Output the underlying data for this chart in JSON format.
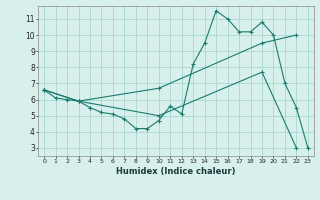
{
  "xlabel": "Humidex (Indice chaleur)",
  "bg_color": "#d7f0ec",
  "grid_color": "#a8d8d0",
  "line_color": "#1a7a6e",
  "xlim": [
    -0.5,
    23.5
  ],
  "ylim": [
    2.5,
    11.8
  ],
  "xticks": [
    0,
    1,
    2,
    3,
    4,
    5,
    6,
    7,
    8,
    9,
    10,
    11,
    12,
    13,
    14,
    15,
    16,
    17,
    18,
    19,
    20,
    21,
    22,
    23
  ],
  "yticks": [
    3,
    4,
    5,
    6,
    7,
    8,
    9,
    10,
    11
  ],
  "series1_x": [
    0,
    1,
    2,
    3,
    4,
    5,
    6,
    7,
    8,
    9,
    10,
    11,
    12,
    13,
    14,
    15,
    16,
    17,
    18,
    19,
    20,
    21,
    22,
    23
  ],
  "series1_y": [
    6.6,
    6.1,
    6.0,
    5.9,
    5.5,
    5.2,
    5.1,
    4.8,
    4.2,
    4.2,
    4.7,
    5.6,
    5.1,
    8.2,
    9.5,
    11.5,
    11.0,
    10.2,
    10.2,
    10.8,
    10.0,
    7.0,
    5.5,
    3.0
  ],
  "series2_x": [
    0,
    3,
    10,
    19,
    22
  ],
  "series2_y": [
    6.6,
    5.9,
    6.7,
    9.5,
    10.0
  ],
  "series3_x": [
    0,
    3,
    10,
    19,
    22
  ],
  "series3_y": [
    6.6,
    5.9,
    5.0,
    7.7,
    3.0
  ]
}
